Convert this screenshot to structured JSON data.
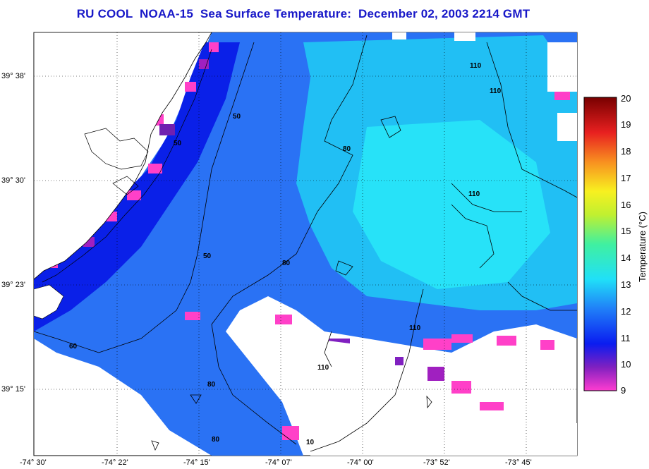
{
  "title": "RU COOL  NOAA-15  Sea Surface Temperature:  December 02, 2003 2214 GMT",
  "lat_labels": [
    "39° 38'",
    "39° 30'",
    "39° 23'",
    "39° 15'"
  ],
  "lon_labels": [
    "-74° 30'",
    "-74° 22'",
    "-74° 15'",
    "-74° 07'",
    "-74° 00'",
    "-73° 52'",
    "-73° 45'"
  ],
  "colorbar": {
    "title": "Temperature (°C)",
    "ticks": [
      "20",
      "19",
      "18",
      "17",
      "16",
      "15",
      "14",
      "13",
      "12",
      "11",
      "10",
      "9"
    ],
    "range": [
      9,
      20
    ]
  },
  "contour_labels": [
    "50",
    "50",
    "50",
    "80",
    "80",
    "80",
    "80",
    "110",
    "110",
    "110",
    "110",
    "110",
    "60",
    "10"
  ],
  "colors": {
    "title": "#1818c8",
    "land": "#ffffff",
    "cloud": "#ffffff",
    "cold": "#ff40c0",
    "deep_blue": "#1030f0",
    "cyan": "#20d8f8"
  }
}
